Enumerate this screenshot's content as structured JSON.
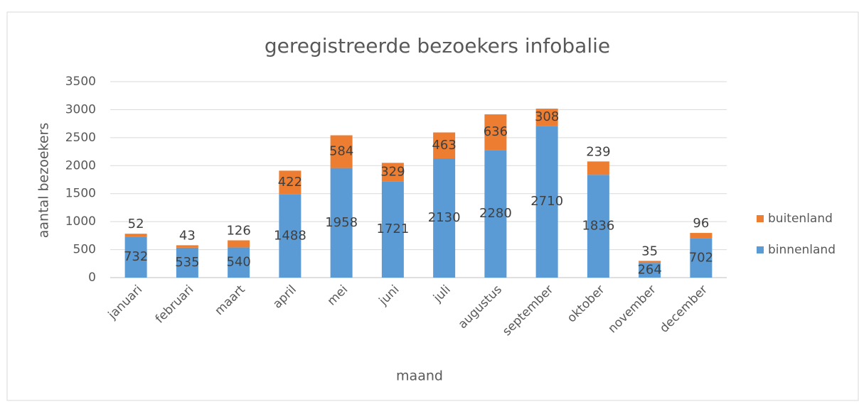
{
  "chart_data": {
    "type": "bar",
    "stacked": true,
    "title": "geregistreerde bezoekers infobalie",
    "x_label": "maand",
    "y_label": "aantal bezoekers",
    "categories": [
      "januari",
      "februari",
      "maart",
      "april",
      "mei",
      "juni",
      "juli",
      "augustus",
      "september",
      "oktober",
      "november",
      "december"
    ],
    "series": [
      {
        "name": "binnenland",
        "color": "#5b9bd5",
        "values": [
          732,
          535,
          540,
          1488,
          1958,
          1721,
          2130,
          2280,
          2710,
          1836,
          264,
          702
        ]
      },
      {
        "name": "buitenland",
        "color": "#ed7d31",
        "values": [
          52,
          43,
          126,
          422,
          584,
          329,
          463,
          636,
          308,
          239,
          35,
          96
        ]
      }
    ],
    "ylim": [
      0,
      3500
    ],
    "yticks": [
      0,
      500,
      1000,
      1500,
      2000,
      2500,
      3000,
      3500
    ],
    "grid": true,
    "legend": "right"
  }
}
